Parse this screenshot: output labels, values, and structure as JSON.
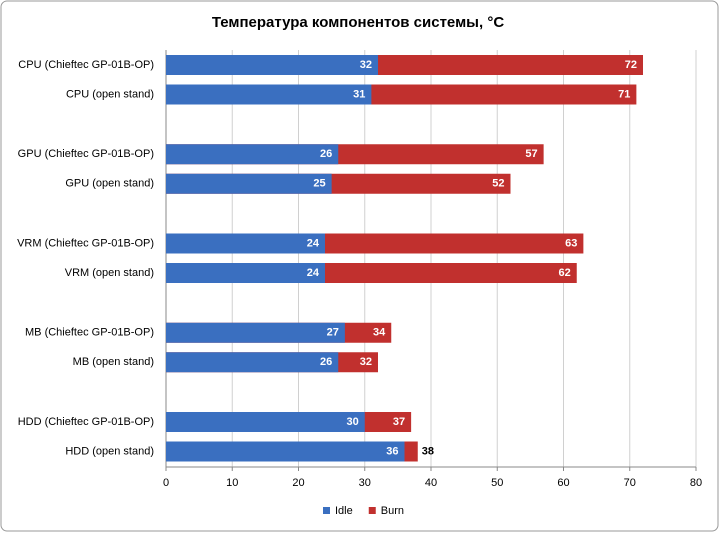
{
  "chart_data": {
    "type": "bar",
    "orientation": "horizontal",
    "overlap": true,
    "title": "Температура компонентов системы, °C",
    "categories": [
      "CPU (Chieftec GP-01B-OP)",
      "CPU (open stand)",
      "GPU (Chieftec GP-01B-OP)",
      "GPU (open stand)",
      "VRM (Chieftec GP-01B-OP)",
      "VRM (open stand)",
      "MB (Chieftec GP-01B-OP)",
      "MB (open stand)",
      "HDD (Chieftec GP-01B-OP)",
      "HDD (open stand)"
    ],
    "series": [
      {
        "name": "Burn",
        "color": "#c1302e",
        "values": [
          72,
          71,
          57,
          52,
          63,
          62,
          34,
          32,
          37,
          38
        ]
      },
      {
        "name": "Idle",
        "color": "#3a6fc0",
        "values": [
          32,
          31,
          26,
          25,
          24,
          24,
          27,
          26,
          30,
          36
        ]
      }
    ],
    "xlim": [
      0,
      80
    ],
    "xticks": [
      0,
      10,
      20,
      30,
      40,
      50,
      60,
      70,
      80
    ],
    "grid": true,
    "legend": "bottom"
  }
}
